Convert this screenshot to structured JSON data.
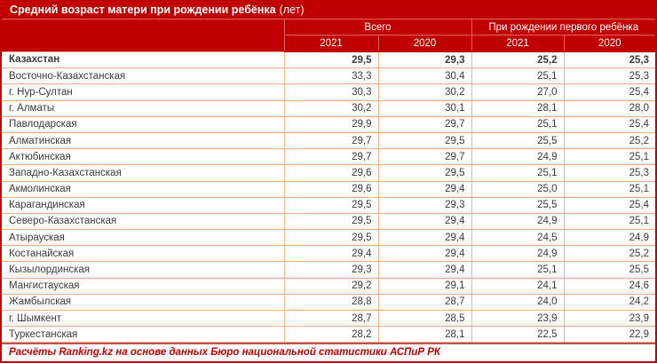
{
  "title": "Средний возраст матери при рождении ребёнка",
  "title_unit": "(лет)",
  "table": {
    "group_headers": [
      {
        "label": "Всего",
        "colspan": 2
      },
      {
        "label": "При рождении первого ребёнка",
        "colspan": 2
      }
    ],
    "year_headers": [
      "2021",
      "2020",
      "2021",
      "2020"
    ],
    "bold_rows": [
      0
    ]
  },
  "footer": "Расчёты Ranking.kz на основе данных Бюро национальной статистики АСПиР РК",
  "colors": {
    "dark_red": "#C00000",
    "header_border": "#E06666",
    "row_border": "#F4B183",
    "footer_separator": "#C0504D",
    "text": "#3A3A3A"
  },
  "chart_data": {
    "type": "table",
    "title": "Средний возраст матери при рождении ребёнка (лет)",
    "columns": [
      "Регион",
      "Всего 2021",
      "Всего 2020",
      "При рождении первого ребёнка 2021",
      "При рождении первого ребёнка 2020"
    ],
    "rows": [
      [
        "Казахстан",
        "29,5",
        "29,3",
        "25,2",
        "25,3"
      ],
      [
        "Восточно-Казахстанская",
        "33,3",
        "30,4",
        "25,1",
        "25,3"
      ],
      [
        "г. Нур-Султан",
        "30,3",
        "30,2",
        "27,0",
        "25,4"
      ],
      [
        "г. Алматы",
        "30,2",
        "30,1",
        "28,1",
        "28,0"
      ],
      [
        "Павлодарская",
        "29,9",
        "29,7",
        "25,1",
        "25,4"
      ],
      [
        "Алматинская",
        "29,7",
        "29,5",
        "25,5",
        "25,2"
      ],
      [
        "Актюбинская",
        "29,7",
        "29,7",
        "24,9",
        "25,1"
      ],
      [
        "Западно-Казахстанская",
        "29,6",
        "29,5",
        "25,1",
        "25,3"
      ],
      [
        "Акмолинская",
        "29,6",
        "29,4",
        "25,0",
        "25,1"
      ],
      [
        "Карагандинская",
        "29,5",
        "29,3",
        "25,5",
        "25,4"
      ],
      [
        "Северо-Казахстанская",
        "29,5",
        "29,4",
        "24,9",
        "25,1"
      ],
      [
        "Атырауская",
        "29,5",
        "29,4",
        "24,5",
        "24,9"
      ],
      [
        "Костанайская",
        "29,4",
        "29,4",
        "24,9",
        "25,2"
      ],
      [
        "Кызылординская",
        "29,3",
        "29,4",
        "25,1",
        "25,5"
      ],
      [
        "Мангистауская",
        "29,2",
        "29,1",
        "24,1",
        "24,6"
      ],
      [
        "Жамбылская",
        "28,8",
        "28,7",
        "24,0",
        "24,2"
      ],
      [
        "г. Шымкент",
        "28,7",
        "28,5",
        "23,9",
        "23,9"
      ],
      [
        "Туркестанская",
        "28,2",
        "28,1",
        "22,5",
        "22,9"
      ]
    ]
  }
}
